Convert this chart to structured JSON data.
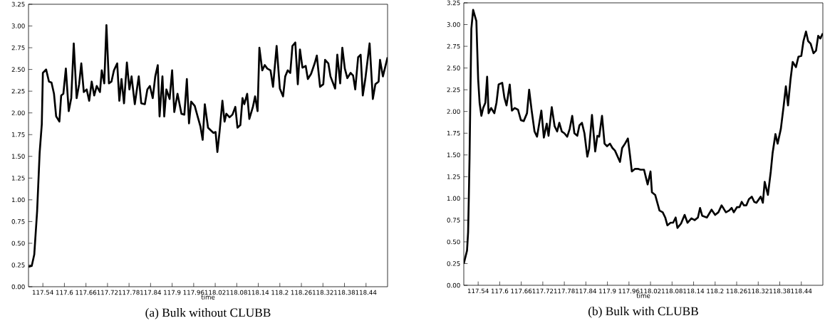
{
  "chart_data": [
    {
      "type": "line",
      "title": "(a)  Bulk without CLUBB",
      "xlabel": "time",
      "xlim": [
        117.5,
        118.5
      ],
      "ylim": [
        0,
        3.25
      ],
      "xticks": [
        117.54,
        117.6,
        117.66,
        117.72,
        117.78,
        117.84,
        117.9,
        117.96,
        118.02,
        118.08,
        118.14,
        118.2,
        118.26,
        118.32,
        118.38,
        118.44
      ],
      "yticks": [
        {
          "value": 0,
          "label": "0.00"
        },
        {
          "value": 0.25,
          "label": "0.25"
        },
        {
          "value": 0.5,
          "label": "0.50"
        },
        {
          "value": 0.75,
          "label": "0.75"
        },
        {
          "value": 1,
          "label": "1.00"
        },
        {
          "value": 1.25,
          "label": "1.25"
        },
        {
          "value": 1.5,
          "label": "1.50"
        },
        {
          "value": 1.75,
          "label": "1.75"
        },
        {
          "value": 2,
          "label": "2.00"
        },
        {
          "value": 2.25,
          "label": "2.25"
        },
        {
          "value": 2.5,
          "label": "2.50"
        },
        {
          "value": 2.75,
          "label": "2.75"
        },
        {
          "value": 3,
          "label": "3.00"
        },
        {
          "value": 3.25,
          "label": "3.25"
        }
      ],
      "series": [
        {
          "color": "#000000",
          "x": [
            117.5,
            117.509,
            117.516,
            117.524,
            117.531,
            117.537,
            117.54,
            117.549,
            117.557,
            117.564,
            117.571,
            117.577,
            117.586,
            117.591,
            117.597,
            117.604,
            117.612,
            117.619,
            117.626,
            117.634,
            117.641,
            117.647,
            117.654,
            117.662,
            117.669,
            117.676,
            117.683,
            117.69,
            117.699,
            117.704,
            117.711,
            117.717,
            117.724,
            117.731,
            117.738,
            117.747,
            117.753,
            117.759,
            117.766,
            117.774,
            117.781,
            117.787,
            117.796,
            117.807,
            117.814,
            117.824,
            117.831,
            117.838,
            117.846,
            117.853,
            117.86,
            117.865,
            117.873,
            117.878,
            117.884,
            117.893,
            117.9,
            117.906,
            117.915,
            117.926,
            117.934,
            117.941,
            117.947,
            117.953,
            117.963,
            117.971,
            117.979,
            117.985,
            117.991,
            118.0,
            118.015,
            118.021,
            118.026,
            118.032,
            118.04,
            118.046,
            118.051,
            118.06,
            118.068,
            118.076,
            118.082,
            118.09,
            118.096,
            118.101,
            118.109,
            118.115,
            118.125,
            118.131,
            118.138,
            118.143,
            118.151,
            118.158,
            118.165,
            118.174,
            118.181,
            118.191,
            118.2,
            118.209,
            118.215,
            118.222,
            118.229,
            118.235,
            118.243,
            118.25,
            118.256,
            118.263,
            118.272,
            118.278,
            118.287,
            118.297,
            118.303,
            118.312,
            118.321,
            118.326,
            118.335,
            118.341,
            118.354,
            118.36,
            118.368,
            118.374,
            118.381,
            118.388,
            118.397,
            118.404,
            118.41,
            118.418,
            118.425,
            118.431,
            118.438,
            118.45,
            118.459,
            118.466,
            118.475,
            118.479,
            118.487,
            118.5
          ],
          "values": [
            0.23,
            0.24,
            0.37,
            0.87,
            1.54,
            1.87,
            2.46,
            2.5,
            2.36,
            2.35,
            2.22,
            1.96,
            1.9,
            2.2,
            2.22,
            2.51,
            2.02,
            2.17,
            2.8,
            2.17,
            2.33,
            2.57,
            2.24,
            2.27,
            2.14,
            2.36,
            2.2,
            2.31,
            2.24,
            2.49,
            2.34,
            3.01,
            2.34,
            2.36,
            2.49,
            2.57,
            2.14,
            2.39,
            2.11,
            2.58,
            2.27,
            2.42,
            2.1,
            2.42,
            2.11,
            2.1,
            2.27,
            2.31,
            2.17,
            2.42,
            2.55,
            1.96,
            2.42,
            1.96,
            2.27,
            2.16,
            2.49,
            2.01,
            2.22,
            1.99,
            1.98,
            2.39,
            1.88,
            2.13,
            2.08,
            1.96,
            1.84,
            1.69,
            2.1,
            1.83,
            1.77,
            1.78,
            1.55,
            1.78,
            2.14,
            1.9,
            1.99,
            1.95,
            1.98,
            2.07,
            1.83,
            1.86,
            2.17,
            2.1,
            2.22,
            1.93,
            2.07,
            2.19,
            2.02,
            2.75,
            2.49,
            2.55,
            2.51,
            2.49,
            2.3,
            2.77,
            2.28,
            2.19,
            2.42,
            2.49,
            2.46,
            2.77,
            2.81,
            2.33,
            2.73,
            2.52,
            2.54,
            2.39,
            2.45,
            2.57,
            2.66,
            2.3,
            2.33,
            2.61,
            2.57,
            2.42,
            2.28,
            2.67,
            2.34,
            2.75,
            2.51,
            2.4,
            2.46,
            2.43,
            2.27,
            2.64,
            2.67,
            2.2,
            2.39,
            2.8,
            2.16,
            2.33,
            2.36,
            2.61,
            2.42,
            2.64
          ]
        }
      ]
    },
    {
      "type": "line",
      "title": "(b)  Bulk with CLUBB",
      "xlabel": "time",
      "xlim": [
        117.5,
        118.5
      ],
      "ylim": [
        0,
        3.25
      ],
      "xticks": [
        117.54,
        117.6,
        117.66,
        117.72,
        117.78,
        117.84,
        117.9,
        117.96,
        118.02,
        118.08,
        118.14,
        118.2,
        118.26,
        118.32,
        118.38,
        118.44
      ],
      "yticks": [
        {
          "value": 0,
          "label": "0.00"
        },
        {
          "value": 0.25,
          "label": "0.25"
        },
        {
          "value": 0.5,
          "label": "0.50"
        },
        {
          "value": 0.75,
          "label": "0.75"
        },
        {
          "value": 1,
          "label": "1.00"
        },
        {
          "value": 1.25,
          "label": "1.25"
        },
        {
          "value": 1.5,
          "label": "1.50"
        },
        {
          "value": 1.75,
          "label": "1.75"
        },
        {
          "value": 2,
          "label": "2.00"
        },
        {
          "value": 2.25,
          "label": "2.25"
        },
        {
          "value": 2.5,
          "label": "2.50"
        },
        {
          "value": 2.75,
          "label": "2.75"
        },
        {
          "value": 3,
          "label": "3.00"
        },
        {
          "value": 3.25,
          "label": "3.25"
        }
      ],
      "series": [
        {
          "color": "#000000",
          "x": [
            117.5,
            117.509,
            117.512,
            117.514,
            117.516,
            117.518,
            117.521,
            117.526,
            117.535,
            117.54,
            117.544,
            117.549,
            117.554,
            117.56,
            117.565,
            117.569,
            117.576,
            117.585,
            117.591,
            117.597,
            117.607,
            117.613,
            117.619,
            117.628,
            117.634,
            117.642,
            117.651,
            117.659,
            117.667,
            117.676,
            117.682,
            117.689,
            117.697,
            117.704,
            117.716,
            117.723,
            117.731,
            117.736,
            117.745,
            117.753,
            117.76,
            117.766,
            117.773,
            117.78,
            117.788,
            117.795,
            117.802,
            117.808,
            117.816,
            117.822,
            117.829,
            117.836,
            117.844,
            117.849,
            117.857,
            117.866,
            117.872,
            117.877,
            117.885,
            117.892,
            117.899,
            117.907,
            117.914,
            117.921,
            117.935,
            117.941,
            117.949,
            117.957,
            117.963,
            117.968,
            117.977,
            117.985,
            117.992,
            118.002,
            118.012,
            118.02,
            118.024,
            118.033,
            118.045,
            118.054,
            118.061,
            118.067,
            118.076,
            118.083,
            118.09,
            118.095,
            118.105,
            118.115,
            118.123,
            118.134,
            118.143,
            118.152,
            118.158,
            118.164,
            118.177,
            118.19,
            118.2,
            118.209,
            118.218,
            118.23,
            118.239,
            118.246,
            118.252,
            118.261,
            118.268,
            118.274,
            118.28,
            118.287,
            118.294,
            118.302,
            118.309,
            118.315,
            118.327,
            118.333,
            118.338,
            118.347,
            118.355,
            118.36,
            118.368,
            118.374,
            118.383,
            118.391,
            118.397,
            118.403,
            118.41,
            118.416,
            118.425,
            118.432,
            118.44,
            118.446,
            118.453,
            118.459,
            118.466,
            118.474,
            118.481,
            118.487,
            118.493,
            118.5
          ],
          "values": [
            0.25,
            0.4,
            0.61,
            1.01,
            1.46,
            2.07,
            2.95,
            3.17,
            3.04,
            2.37,
            2.1,
            1.95,
            2.04,
            2.1,
            2.4,
            1.98,
            2.04,
            1.98,
            2.1,
            2.31,
            2.33,
            2.16,
            2.07,
            2.31,
            2.01,
            2.04,
            2.02,
            1.9,
            1.89,
            1.98,
            2.25,
            2.01,
            1.77,
            1.71,
            2.01,
            1.7,
            1.86,
            1.72,
            2.05,
            1.83,
            1.77,
            1.87,
            1.77,
            1.75,
            1.71,
            1.8,
            1.95,
            1.75,
            1.72,
            1.84,
            1.87,
            1.75,
            1.48,
            1.57,
            1.96,
            1.54,
            1.72,
            1.71,
            1.95,
            1.63,
            1.6,
            1.63,
            1.58,
            1.55,
            1.42,
            1.58,
            1.63,
            1.69,
            1.49,
            1.31,
            1.34,
            1.34,
            1.33,
            1.33,
            1.16,
            1.31,
            1.07,
            1.04,
            0.86,
            0.84,
            0.78,
            0.69,
            0.72,
            0.72,
            0.78,
            0.66,
            0.71,
            0.81,
            0.72,
            0.77,
            0.75,
            0.78,
            0.89,
            0.8,
            0.78,
            0.87,
            0.81,
            0.84,
            0.92,
            0.84,
            0.86,
            0.89,
            0.84,
            0.9,
            0.9,
            0.96,
            0.92,
            0.92,
            0.99,
            1.02,
            0.96,
            0.95,
            1.02,
            0.95,
            1.19,
            1.04,
            1.31,
            1.52,
            1.74,
            1.63,
            1.8,
            2.07,
            2.29,
            2.07,
            2.37,
            2.57,
            2.51,
            2.63,
            2.64,
            2.81,
            2.92,
            2.81,
            2.78,
            2.67,
            2.7,
            2.87,
            2.84,
            2.9
          ]
        }
      ]
    }
  ]
}
